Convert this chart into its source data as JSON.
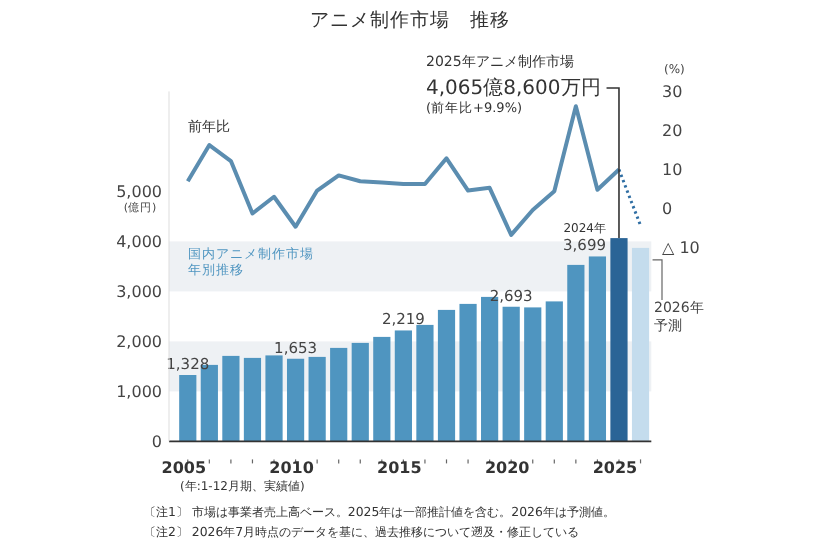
{
  "chart_data": {
    "type": "bar",
    "title": "アニメ制作市場　推移",
    "ylabel": "(億円)",
    "y2label": "(%)",
    "categories": [
      "2005",
      null,
      null,
      null,
      null,
      "2010",
      null,
      null,
      null,
      null,
      "2015",
      null,
      null,
      null,
      null,
      "2020",
      null,
      null,
      null,
      null,
      "2025",
      null
    ],
    "series": [
      {
        "name": "国内アニメ制作市場年別推移",
        "colors": [
          "#4f95c0",
          "#4f95c0",
          "#4f95c0",
          "#4f95c0",
          "#4f95c0",
          "#4f95c0",
          "#4f95c0",
          "#4f95c0",
          "#4f95c0",
          "#4f95c0",
          "#4f95c0",
          "#4f95c0",
          "#4f95c0",
          "#4f95c0",
          "#4f95c0",
          "#4f95c0",
          "#4f95c0",
          "#4f95c0",
          "#4f95c0",
          "#4f95c0",
          "#2a6496",
          "#c4dced"
        ],
        "values": [
          1328,
          1530,
          1710,
          1670,
          1720,
          1653,
          1690,
          1870,
          1970,
          2090,
          2219,
          2330,
          2630,
          2750,
          2890,
          2693,
          2680,
          2800,
          3530,
          3699,
          4065.86,
          3870
        ],
        "value_labels": [
          "1,328",
          null,
          null,
          null,
          null,
          "1,653",
          null,
          null,
          null,
          null,
          "2,219",
          null,
          null,
          null,
          null,
          "2,693",
          null,
          null,
          null,
          "3,699",
          null,
          null
        ]
      },
      {
        "type": "line",
        "axis": "y2",
        "name": "前年比",
        "color": "#5b8db0",
        "values": [
          6.9,
          16.2,
          12.1,
          -1.4,
          2.9,
          -4.8,
          4.5,
          8.4,
          6.9,
          6.6,
          6.2,
          6.2,
          12.8,
          4.5,
          5.2,
          -6.9,
          -0.5,
          4.3,
          26.2,
          4.7,
          9.9,
          null
        ]
      },
      {
        "type": "line",
        "axis": "y2",
        "color": "#2f6ea3",
        "line_style": "dotted",
        "values": [
          null,
          null,
          null,
          null,
          null,
          null,
          null,
          null,
          null,
          null,
          null,
          null,
          null,
          null,
          null,
          null,
          null,
          null,
          null,
          null,
          9.9,
          -4.5
        ]
      }
    ],
    "ylim": [
      0,
      7000
    ],
    "yticks": [
      {
        "value": 0,
        "label": "0"
      },
      {
        "value": 1000,
        "label": "1,000"
      },
      {
        "value": 2000,
        "label": "2,000"
      },
      {
        "value": 3000,
        "label": "3,000"
      },
      {
        "value": 4000,
        "label": "4,000"
      },
      {
        "value": 5000,
        "label": "5,000"
      }
    ],
    "y2lim": [
      -60,
      30
    ],
    "y2ticks": [
      {
        "value": -10,
        "label": "△ 10"
      },
      0,
      10,
      20,
      30
    ],
    "bands": [
      {
        "axis": "y",
        "from": 1000,
        "to": 2000,
        "color": "#eef1f4"
      },
      {
        "axis": "y",
        "from": 3000,
        "to": 4000,
        "color": "#eef1f4"
      }
    ],
    "annotations": [
      "2025年アニメ制作市場",
      {
        "text": "4,065億8,600万円",
        "x": "2025",
        "y": 4065.86
      },
      "(前年比+9.9%)",
      "2024年",
      "2026年予測",
      "(年:1-12月期、実績値)",
      "〔注1〕 市場は事業者売上高ベース。2025年は一部推計値を含む。2026年は予測値。",
      "〔注2〕 2026年7月時点のデータを基に、過去推移について遡及・修正している"
    ]
  }
}
